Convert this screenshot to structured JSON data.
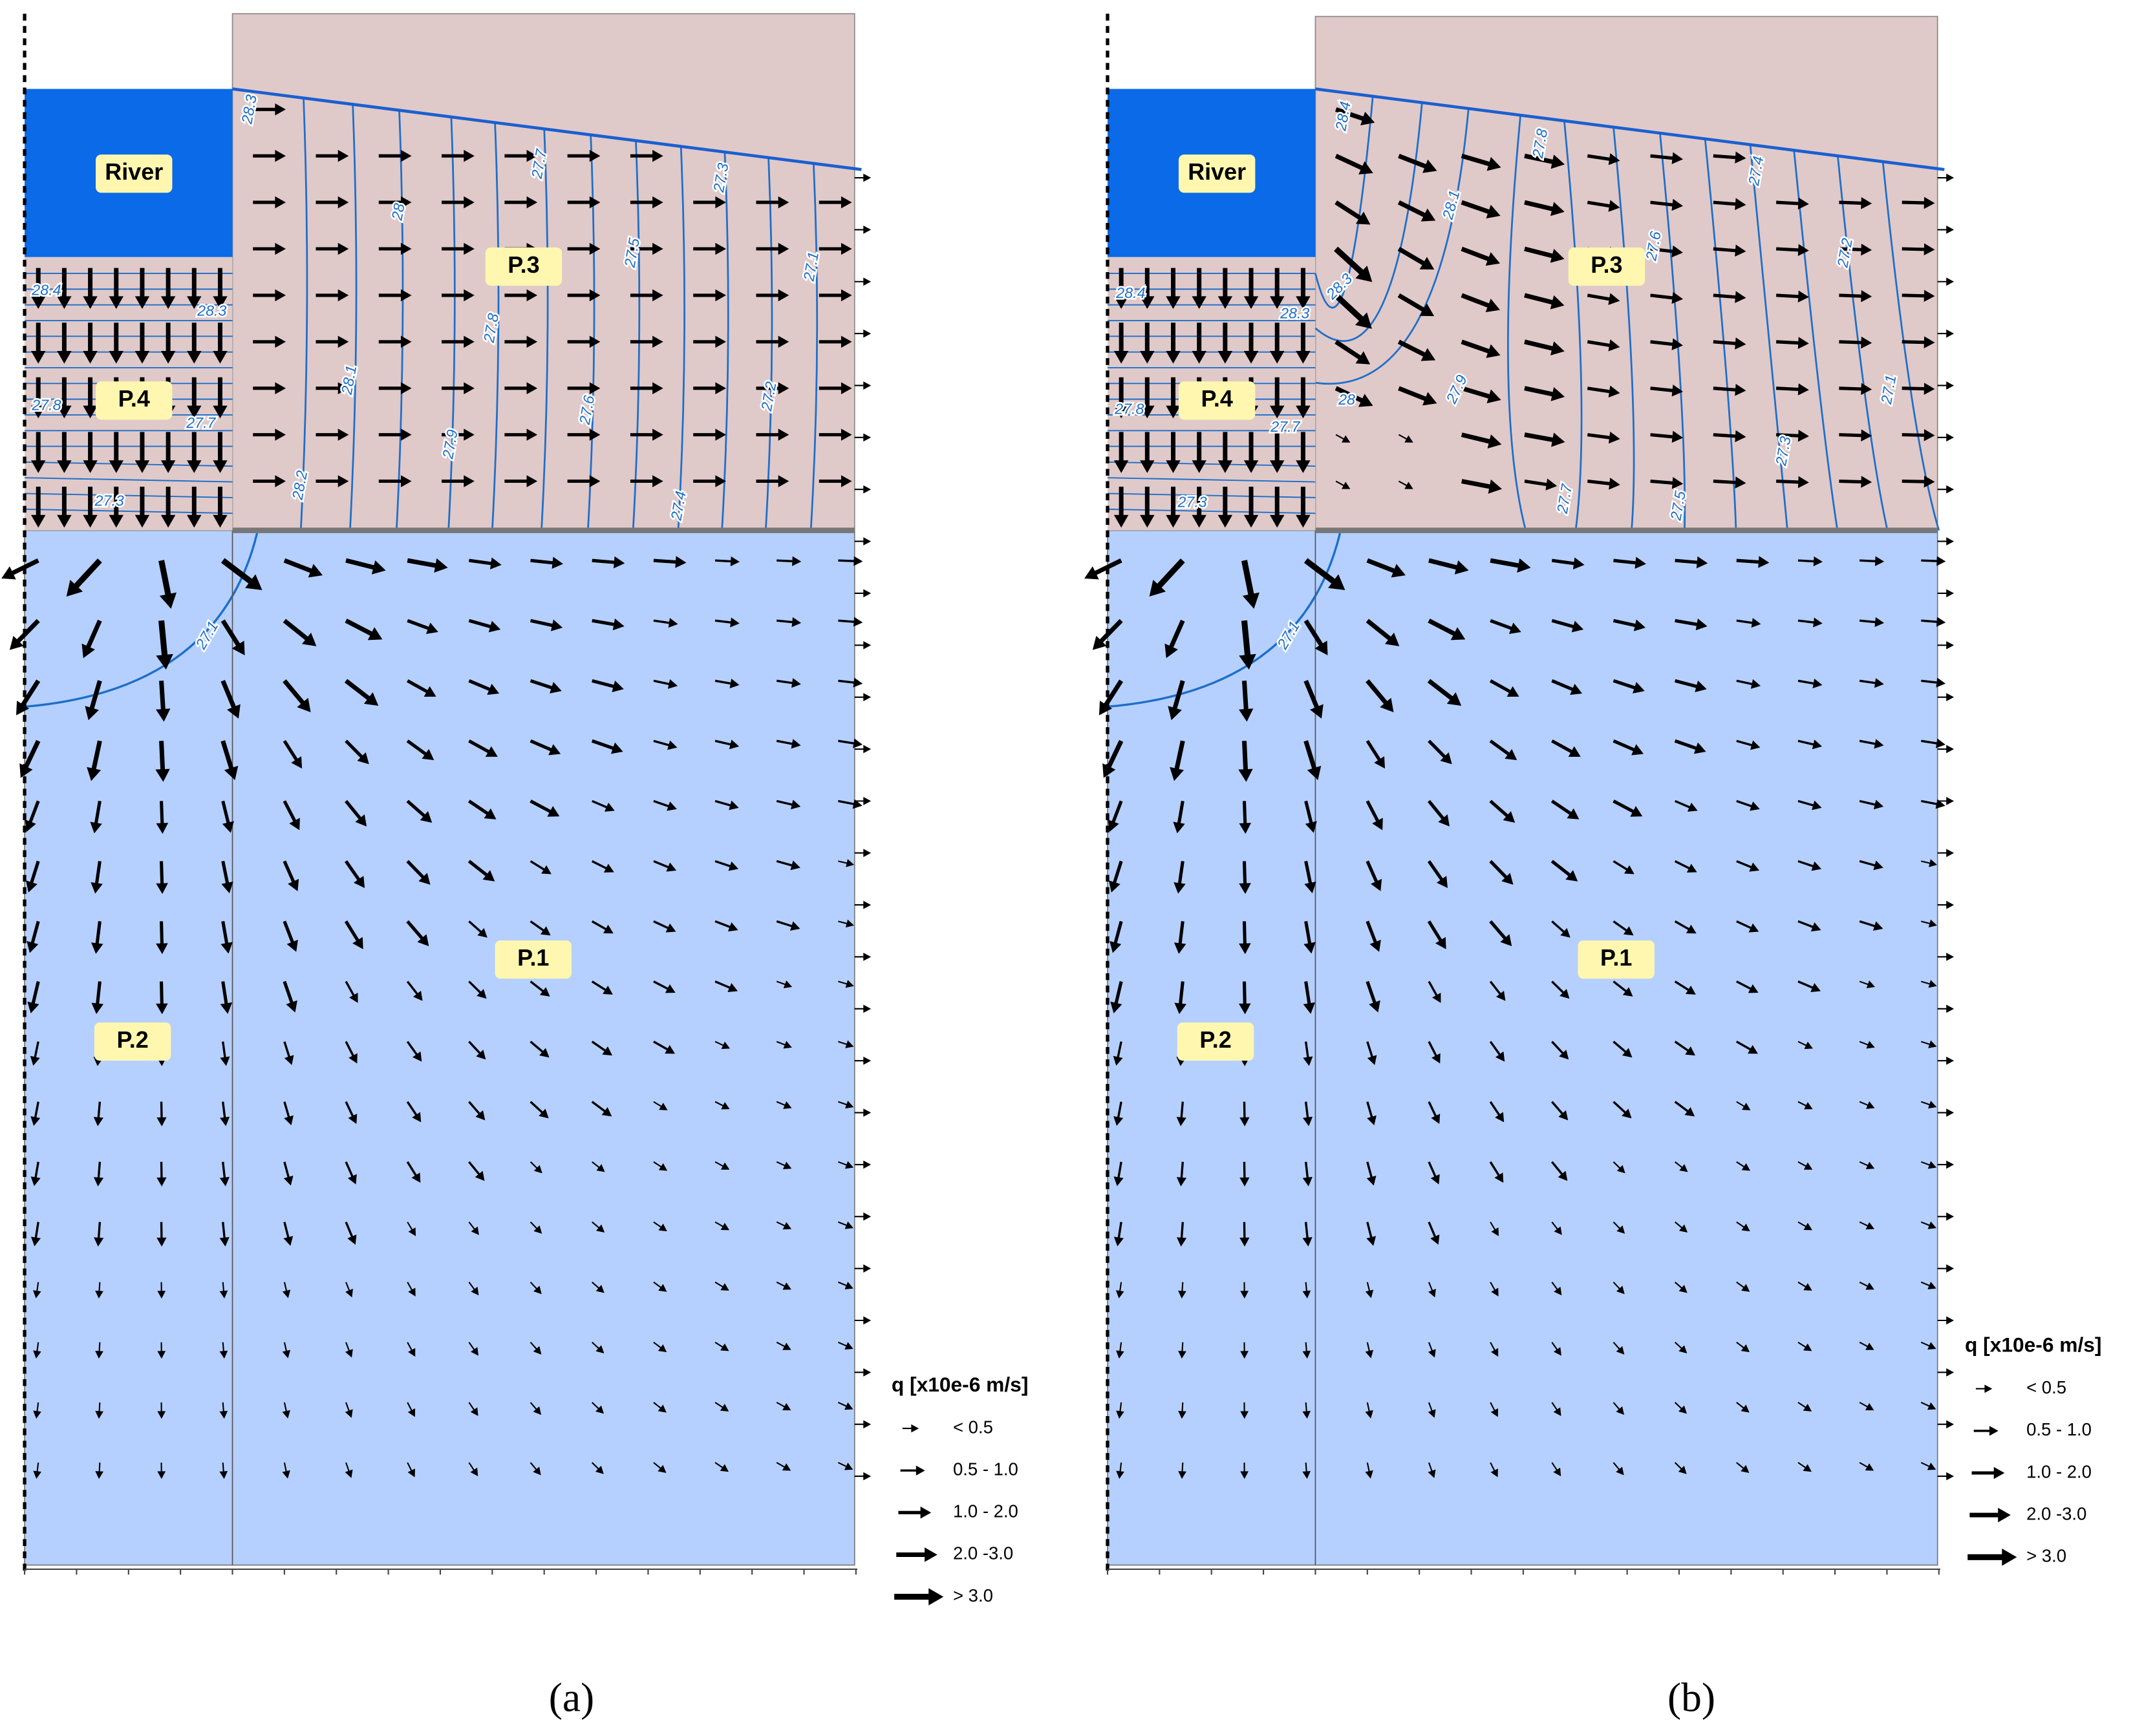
{
  "panels": [
    {
      "caption": "(a)",
      "regions": {
        "river": "River",
        "p1": "P.1",
        "p2": "P.2",
        "p3": "P.3",
        "p4": "P.4"
      },
      "contour_labels": [
        "28.3",
        "28.4",
        "28.3",
        "27.8",
        "27.7",
        "27.3",
        "28",
        "27.7",
        "27.5",
        "27.3",
        "27.1",
        "27.8",
        "28.1",
        "27.6",
        "27.2",
        "27.9",
        "28.2",
        "27.4",
        "27.1"
      ],
      "legend": {
        "title": "q [x10e-6 m/s]",
        "items": [
          "< 0.5",
          "0.5 - 1.0",
          "1.0 - 2.0",
          "2.0 -3.0",
          "> 3.0"
        ]
      }
    },
    {
      "caption": "(b)",
      "regions": {
        "river": "River",
        "p1": "P.1",
        "p2": "P.2",
        "p3": "P.3",
        "p4": "P.4"
      },
      "contour_labels": [
        "28.4",
        "28.1",
        "27.8",
        "27.4",
        "27.2",
        "28.4",
        "28.3",
        "28.3",
        "27.6",
        "27.1",
        "27.8",
        "27.7",
        "28",
        "27.9",
        "27.3",
        "27.3",
        "27.7",
        "27.5",
        "27.1"
      ],
      "legend": {
        "title": "q [x10e-6 m/s]",
        "items": [
          "< 0.5",
          "0.5 - 1.0",
          "1.0 - 2.0",
          "2.0 -3.0",
          "> 3.0"
        ]
      }
    }
  ]
}
